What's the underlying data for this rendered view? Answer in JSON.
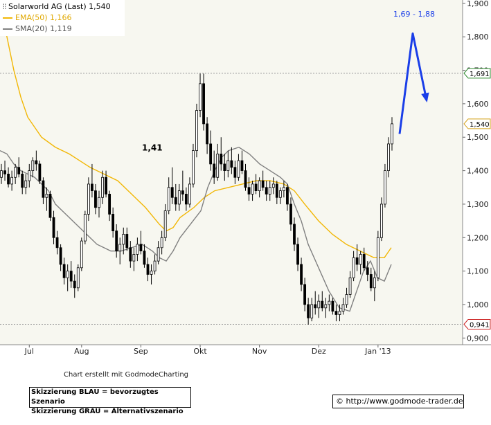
{
  "chart_data": {
    "type": "candlestick",
    "title": "Solarworld AG (Last) 1,540",
    "legend": [
      {
        "name": "EMA(50)",
        "value": "1,166",
        "color": "#f2b705"
      },
      {
        "name": "SMA(20)",
        "value": "1,119",
        "color": "#808080"
      }
    ],
    "ylim": [
      0.88,
      1.91
    ],
    "yticks": [
      "0,900",
      "1,000",
      "1,100",
      "1,200",
      "1,300",
      "1,400",
      "1,500",
      "1,600",
      "1,700",
      "1,800",
      "1,900"
    ],
    "xticks": [
      "Jul",
      "Aug",
      "Sep",
      "Okt",
      "Nov",
      "Dez",
      "Jan '13"
    ],
    "levels": [
      {
        "value": 1.691,
        "label": "1,691",
        "border": "#2e8b2e"
      },
      {
        "value": 0.941,
        "label": "0,941",
        "border": "#cc2222"
      }
    ],
    "last_price": {
      "value": 1.54,
      "label": "1,540",
      "border": "#d4a017"
    },
    "annotations": {
      "mid_label": "1,41",
      "target_label": "1,69 - 1,88"
    },
    "colors": {
      "background": "#f7f7f0",
      "grid": "#b0b0b0",
      "bull": "#ffffff",
      "bear": "#000000",
      "blue": "#1a3ee8"
    },
    "candles": [
      [
        1.38,
        1.42,
        1.36,
        1.4
      ],
      [
        1.4,
        1.43,
        1.37,
        1.39
      ],
      [
        1.39,
        1.41,
        1.35,
        1.36
      ],
      [
        1.36,
        1.4,
        1.34,
        1.38
      ],
      [
        1.38,
        1.42,
        1.36,
        1.41
      ],
      [
        1.41,
        1.44,
        1.38,
        1.39
      ],
      [
        1.39,
        1.4,
        1.33,
        1.35
      ],
      [
        1.35,
        1.39,
        1.33,
        1.37
      ],
      [
        1.37,
        1.42,
        1.35,
        1.4
      ],
      [
        1.4,
        1.44,
        1.38,
        1.43
      ],
      [
        1.43,
        1.46,
        1.4,
        1.42
      ],
      [
        1.42,
        1.43,
        1.36,
        1.37
      ],
      [
        1.37,
        1.38,
        1.3,
        1.32
      ],
      [
        1.32,
        1.35,
        1.28,
        1.33
      ],
      [
        1.33,
        1.34,
        1.25,
        1.26
      ],
      [
        1.26,
        1.28,
        1.18,
        1.2
      ],
      [
        1.2,
        1.22,
        1.15,
        1.17
      ],
      [
        1.17,
        1.18,
        1.1,
        1.12
      ],
      [
        1.12,
        1.14,
        1.06,
        1.08
      ],
      [
        1.08,
        1.12,
        1.04,
        1.1
      ],
      [
        1.1,
        1.13,
        1.05,
        1.07
      ],
      [
        1.07,
        1.09,
        1.02,
        1.05
      ],
      [
        1.05,
        1.12,
        1.04,
        1.11
      ],
      [
        1.11,
        1.2,
        1.1,
        1.19
      ],
      [
        1.19,
        1.28,
        1.18,
        1.27
      ],
      [
        1.27,
        1.38,
        1.25,
        1.36
      ],
      [
        1.36,
        1.42,
        1.32,
        1.34
      ],
      [
        1.34,
        1.36,
        1.27,
        1.29
      ],
      [
        1.29,
        1.34,
        1.26,
        1.32
      ],
      [
        1.32,
        1.4,
        1.3,
        1.38
      ],
      [
        1.38,
        1.4,
        1.32,
        1.33
      ],
      [
        1.33,
        1.34,
        1.25,
        1.27
      ],
      [
        1.27,
        1.29,
        1.2,
        1.22
      ],
      [
        1.22,
        1.24,
        1.14,
        1.16
      ],
      [
        1.16,
        1.2,
        1.12,
        1.18
      ],
      [
        1.18,
        1.23,
        1.15,
        1.21
      ],
      [
        1.21,
        1.23,
        1.16,
        1.17
      ],
      [
        1.17,
        1.19,
        1.11,
        1.13
      ],
      [
        1.13,
        1.17,
        1.1,
        1.15
      ],
      [
        1.15,
        1.2,
        1.13,
        1.18
      ],
      [
        1.18,
        1.22,
        1.15,
        1.16
      ],
      [
        1.16,
        1.18,
        1.11,
        1.12
      ],
      [
        1.12,
        1.14,
        1.07,
        1.09
      ],
      [
        1.09,
        1.12,
        1.06,
        1.1
      ],
      [
        1.1,
        1.15,
        1.09,
        1.13
      ],
      [
        1.13,
        1.19,
        1.12,
        1.17
      ],
      [
        1.17,
        1.22,
        1.15,
        1.2
      ],
      [
        1.2,
        1.3,
        1.19,
        1.28
      ],
      [
        1.28,
        1.38,
        1.27,
        1.35
      ],
      [
        1.35,
        1.41,
        1.3,
        1.32
      ],
      [
        1.32,
        1.36,
        1.28,
        1.3
      ],
      [
        1.3,
        1.36,
        1.28,
        1.34
      ],
      [
        1.34,
        1.4,
        1.31,
        1.33
      ],
      [
        1.33,
        1.35,
        1.28,
        1.3
      ],
      [
        1.3,
        1.38,
        1.29,
        1.36
      ],
      [
        1.36,
        1.48,
        1.35,
        1.46
      ],
      [
        1.46,
        1.6,
        1.44,
        1.58
      ],
      [
        1.58,
        1.69,
        1.56,
        1.66
      ],
      [
        1.66,
        1.69,
        1.52,
        1.54
      ],
      [
        1.54,
        1.56,
        1.45,
        1.48
      ],
      [
        1.48,
        1.52,
        1.4,
        1.42
      ],
      [
        1.42,
        1.46,
        1.36,
        1.38
      ],
      [
        1.38,
        1.48,
        1.37,
        1.45
      ],
      [
        1.45,
        1.5,
        1.4,
        1.42
      ],
      [
        1.42,
        1.45,
        1.37,
        1.4
      ],
      [
        1.4,
        1.46,
        1.38,
        1.43
      ],
      [
        1.43,
        1.47,
        1.39,
        1.41
      ],
      [
        1.41,
        1.43,
        1.36,
        1.38
      ],
      [
        1.38,
        1.45,
        1.37,
        1.43
      ],
      [
        1.43,
        1.46,
        1.39,
        1.4
      ],
      [
        1.4,
        1.42,
        1.34,
        1.35
      ],
      [
        1.35,
        1.38,
        1.31,
        1.33
      ],
      [
        1.33,
        1.37,
        1.31,
        1.36
      ],
      [
        1.36,
        1.39,
        1.33,
        1.34
      ],
      [
        1.34,
        1.38,
        1.32,
        1.37
      ],
      [
        1.37,
        1.4,
        1.34,
        1.35
      ],
      [
        1.35,
        1.37,
        1.31,
        1.33
      ],
      [
        1.33,
        1.37,
        1.31,
        1.35
      ],
      [
        1.35,
        1.38,
        1.33,
        1.36
      ],
      [
        1.36,
        1.37,
        1.3,
        1.32
      ],
      [
        1.32,
        1.35,
        1.3,
        1.34
      ],
      [
        1.34,
        1.37,
        1.32,
        1.35
      ],
      [
        1.35,
        1.36,
        1.28,
        1.3
      ],
      [
        1.3,
        1.32,
        1.22,
        1.24
      ],
      [
        1.24,
        1.26,
        1.16,
        1.18
      ],
      [
        1.18,
        1.2,
        1.1,
        1.12
      ],
      [
        1.12,
        1.14,
        1.04,
        1.06
      ],
      [
        1.06,
        1.08,
        0.98,
        1.0
      ],
      [
        1.0,
        1.02,
        0.94,
        0.96
      ],
      [
        0.96,
        1.02,
        0.95,
        1.0
      ],
      [
        1.0,
        1.04,
        0.97,
        0.99
      ],
      [
        0.99,
        1.03,
        0.96,
        1.01
      ],
      [
        1.01,
        1.04,
        0.98,
        0.99
      ],
      [
        0.99,
        1.02,
        0.96,
        1.0
      ],
      [
        1.0,
        1.03,
        0.98,
        1.01
      ],
      [
        1.01,
        1.02,
        0.97,
        0.98
      ],
      [
        0.98,
        1.0,
        0.95,
        0.97
      ],
      [
        0.97,
        1.0,
        0.95,
        0.98
      ],
      [
        0.98,
        1.02,
        0.97,
        1.0
      ],
      [
        1.0,
        1.05,
        0.99,
        1.03
      ],
      [
        1.03,
        1.1,
        1.02,
        1.08
      ],
      [
        1.08,
        1.16,
        1.07,
        1.14
      ],
      [
        1.14,
        1.18,
        1.1,
        1.12
      ],
      [
        1.12,
        1.16,
        1.09,
        1.15
      ],
      [
        1.15,
        1.17,
        1.1,
        1.11
      ],
      [
        1.11,
        1.13,
        1.07,
        1.09
      ],
      [
        1.09,
        1.11,
        1.04,
        1.05
      ],
      [
        1.05,
        1.1,
        1.01,
        1.08
      ],
      [
        1.08,
        1.22,
        1.07,
        1.2
      ],
      [
        1.2,
        1.32,
        1.19,
        1.3
      ],
      [
        1.3,
        1.42,
        1.29,
        1.4
      ],
      [
        1.4,
        1.5,
        1.38,
        1.48
      ],
      [
        1.48,
        1.56,
        1.46,
        1.54
      ]
    ],
    "ema50": [
      [
        0,
        1.9
      ],
      [
        10,
        1.8
      ],
      [
        20,
        1.7
      ],
      [
        30,
        1.62
      ],
      [
        40,
        1.56
      ],
      [
        60,
        1.5
      ],
      [
        80,
        1.47
      ],
      [
        100,
        1.45
      ],
      [
        115,
        1.43
      ],
      [
        130,
        1.41
      ],
      [
        150,
        1.39
      ],
      [
        170,
        1.37
      ],
      [
        190,
        1.33
      ],
      [
        210,
        1.29
      ],
      [
        230,
        1.24
      ],
      [
        240,
        1.22
      ],
      [
        250,
        1.23
      ],
      [
        260,
        1.26
      ],
      [
        280,
        1.29
      ],
      [
        295,
        1.32
      ],
      [
        310,
        1.34
      ],
      [
        330,
        1.35
      ],
      [
        350,
        1.36
      ],
      [
        370,
        1.37
      ],
      [
        390,
        1.37
      ],
      [
        410,
        1.36
      ],
      [
        425,
        1.34
      ],
      [
        440,
        1.3
      ],
      [
        460,
        1.25
      ],
      [
        480,
        1.21
      ],
      [
        500,
        1.18
      ],
      [
        520,
        1.16
      ],
      [
        540,
        1.14
      ],
      [
        555,
        1.14
      ],
      [
        565,
        1.17
      ]
    ],
    "sma20": [
      [
        0,
        1.46
      ],
      [
        10,
        1.45
      ],
      [
        20,
        1.42
      ],
      [
        30,
        1.4
      ],
      [
        40,
        1.39
      ],
      [
        50,
        1.38
      ],
      [
        60,
        1.36
      ],
      [
        70,
        1.34
      ],
      [
        80,
        1.3
      ],
      [
        90,
        1.28
      ],
      [
        100,
        1.26
      ],
      [
        110,
        1.24
      ],
      [
        120,
        1.22
      ],
      [
        130,
        1.2
      ],
      [
        140,
        1.18
      ],
      [
        150,
        1.17
      ],
      [
        160,
        1.16
      ],
      [
        175,
        1.16
      ],
      [
        190,
        1.17
      ],
      [
        205,
        1.18
      ],
      [
        220,
        1.16
      ],
      [
        230,
        1.14
      ],
      [
        240,
        1.13
      ],
      [
        250,
        1.16
      ],
      [
        260,
        1.2
      ],
      [
        275,
        1.24
      ],
      [
        290,
        1.28
      ],
      [
        300,
        1.35
      ],
      [
        310,
        1.4
      ],
      [
        320,
        1.44
      ],
      [
        330,
        1.46
      ],
      [
        345,
        1.47
      ],
      [
        360,
        1.45
      ],
      [
        375,
        1.42
      ],
      [
        390,
        1.4
      ],
      [
        405,
        1.38
      ],
      [
        415,
        1.36
      ],
      [
        425,
        1.3
      ],
      [
        435,
        1.25
      ],
      [
        445,
        1.18
      ],
      [
        460,
        1.11
      ],
      [
        475,
        1.04
      ],
      [
        490,
        0.99
      ],
      [
        505,
        0.98
      ],
      [
        515,
        1.04
      ],
      [
        525,
        1.1
      ],
      [
        535,
        1.13
      ],
      [
        545,
        1.08
      ],
      [
        555,
        1.07
      ],
      [
        565,
        1.12
      ]
    ],
    "blue_arrow": [
      [
        1.51,
        577
      ],
      [
        1.81,
        596
      ],
      [
        1.61,
        616
      ]
    ]
  },
  "chart_credit": "Chart erstellt mit GodmodeCharting",
  "scenario_blue": "Skizzierung BLAU = bevorzugtes Szenario",
  "scenario_grey": "Skizzierung GRAU = Alternativszenario",
  "source_url": "© http://www.godmode-trader.de"
}
